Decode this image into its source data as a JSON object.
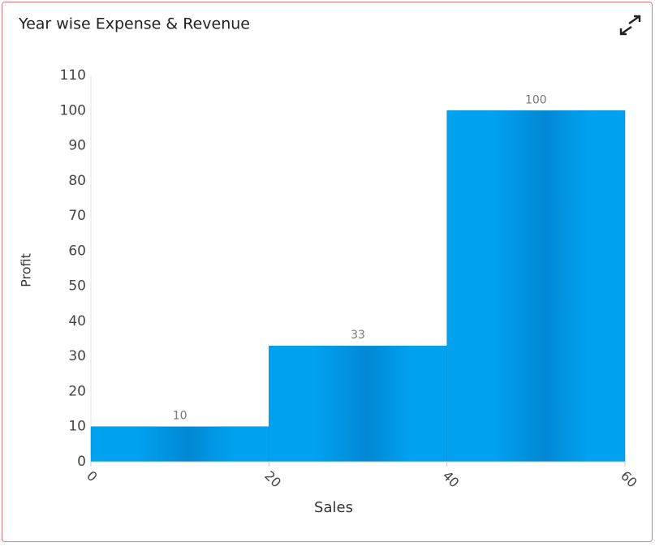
{
  "chart_data": {
    "type": "histogram",
    "title": "Year wise Expense & Revenue",
    "x_label": "Sales",
    "y_label": "Profit",
    "bins": [
      0,
      20,
      40,
      60
    ],
    "values": [
      10,
      33,
      100
    ],
    "color": "#009fee",
    "xlim": [
      0,
      60
    ],
    "xticks": [
      0,
      20,
      40,
      60
    ],
    "ylim": [
      0,
      110
    ],
    "yticks": [
      0,
      10,
      20,
      30,
      40,
      50,
      60,
      70,
      80,
      90,
      100,
      110
    ]
  }
}
